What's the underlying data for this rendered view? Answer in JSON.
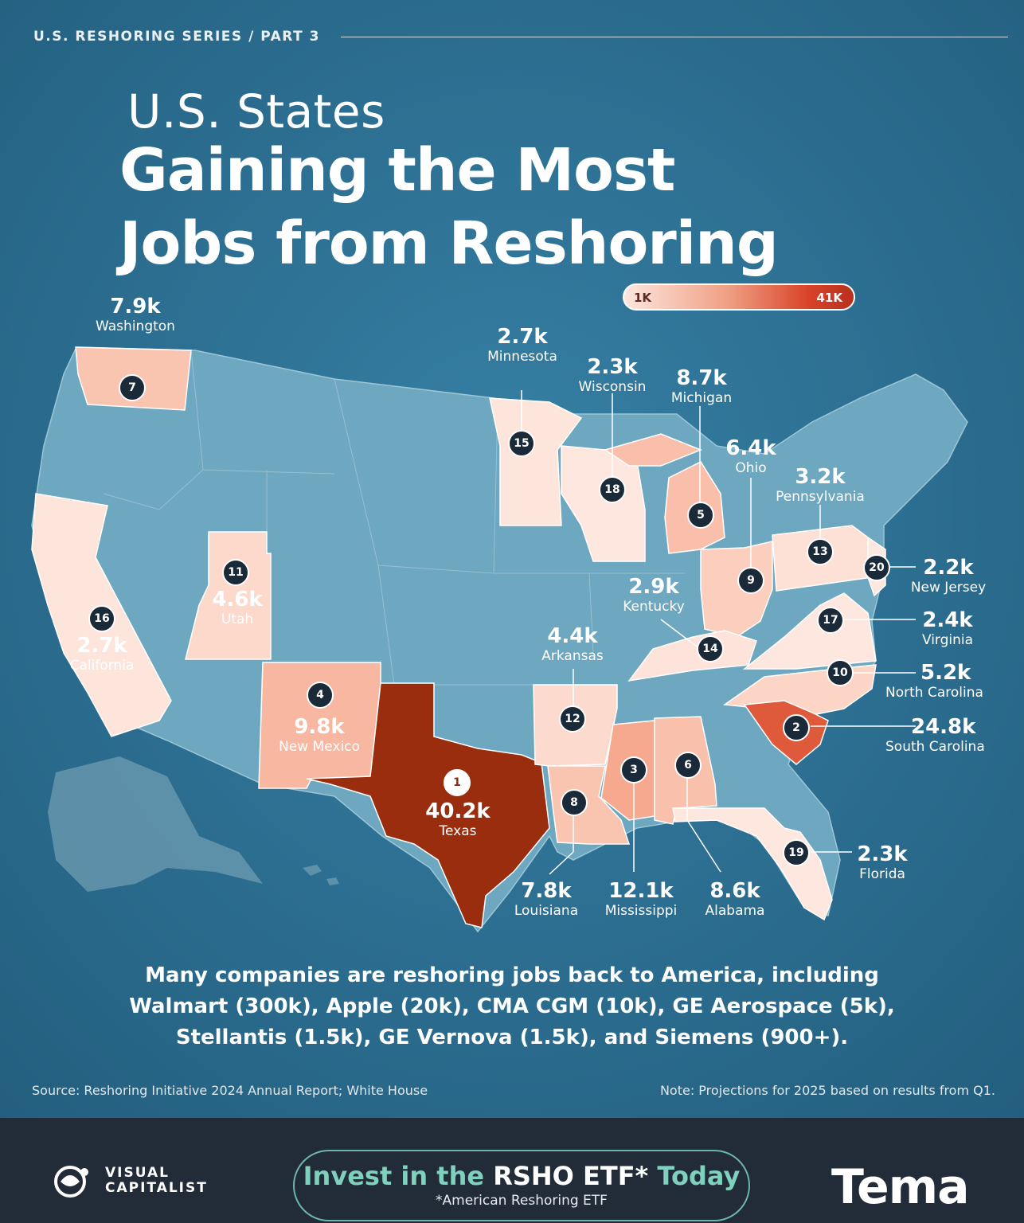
{
  "header": {
    "series": "U.S. RESHORING SERIES / PART 3",
    "title_line1": "U.S. States",
    "title_line2": "Gaining the Most",
    "title_line3": "Jobs from Reshoring"
  },
  "legend": {
    "low_label": "1K",
    "high_label": "41K",
    "low_color": "#fde6de",
    "high_color": "#b8301c"
  },
  "colors": {
    "ocean": "#2b6d8f",
    "land": "#6ea7c0",
    "footer": "#222b38",
    "accent": "#7fd0bd"
  },
  "states": [
    {
      "rank": "1",
      "state": "Texas",
      "jobs": "40.2k",
      "color": "#9a2d0d"
    },
    {
      "rank": "2",
      "state": "South Carolina",
      "jobs": "24.8k",
      "color": "#de5a3a"
    },
    {
      "rank": "3",
      "state": "Mississippi",
      "jobs": "12.1k",
      "color": "#f6a98f"
    },
    {
      "rank": "4",
      "state": "New Mexico",
      "jobs": "9.8k",
      "color": "#f8b7a0"
    },
    {
      "rank": "5",
      "state": "Michigan",
      "jobs": "8.7k",
      "color": "#f9bfaa"
    },
    {
      "rank": "6",
      "state": "Alabama",
      "jobs": "8.6k",
      "color": "#f9c0ab"
    },
    {
      "rank": "7",
      "state": "Washington",
      "jobs": "7.9k",
      "color": "#f9c4b0"
    },
    {
      "rank": "8",
      "state": "Louisiana",
      "jobs": "7.8k",
      "color": "#f9c5b1"
    },
    {
      "rank": "9",
      "state": "Ohio",
      "jobs": "6.4k",
      "color": "#fbcebd"
    },
    {
      "rank": "10",
      "state": "North Carolina",
      "jobs": "5.2k",
      "color": "#fcd5c6"
    },
    {
      "rank": "11",
      "state": "Utah",
      "jobs": "4.6k",
      "color": "#fcd9cb"
    },
    {
      "rank": "12",
      "state": "Arkansas",
      "jobs": "4.4k",
      "color": "#fcdacd"
    },
    {
      "rank": "13",
      "state": "Pennsylvania",
      "jobs": "3.2k",
      "color": "#fde1d6"
    },
    {
      "rank": "14",
      "state": "Kentucky",
      "jobs": "2.9k",
      "color": "#fde3d9"
    },
    {
      "rank": "15",
      "state": "Minnesota",
      "jobs": "2.7k",
      "color": "#fde5db"
    },
    {
      "rank": "16",
      "state": "California",
      "jobs": "2.7k",
      "color": "#fde5db"
    },
    {
      "rank": "17",
      "state": "Virginia",
      "jobs": "2.4k",
      "color": "#fde7de"
    },
    {
      "rank": "18",
      "state": "Wisconsin",
      "jobs": "2.3k",
      "color": "#fde7de"
    },
    {
      "rank": "19",
      "state": "Florida",
      "jobs": "2.3k",
      "color": "#fde7de"
    },
    {
      "rank": "20",
      "state": "New Jersey",
      "jobs": "2.2k",
      "color": "#fde8df"
    }
  ],
  "description": {
    "line1": "Many companies are reshoring jobs back to America, including",
    "line2": "Walmart (300k), Apple (20k), CMA CGM (10k), GE Aerospace (5k),",
    "line3": "Stellantis (1.5k), GE Vernova (1.5k), and Siemens (900+)."
  },
  "source": "Source: Reshoring Initiative 2024 Annual Report; White House",
  "note": "Note: Projections for 2025 based on results from Q1.",
  "footer": {
    "brand_line1": "VISUAL",
    "brand_line2": "CAPITALIST",
    "cta_part1": "Invest in the",
    "cta_part2": "RSHO ETF*",
    "cta_part3": "Today",
    "cta_sub": "*American Reshoring ETF",
    "partner": "Tema"
  }
}
